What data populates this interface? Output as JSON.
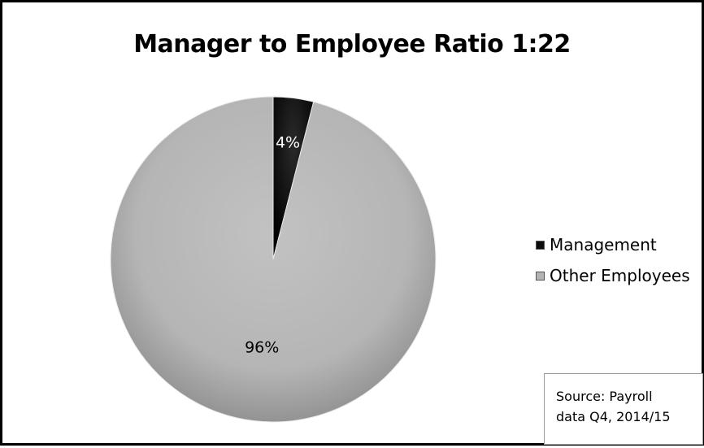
{
  "chart_data": {
    "type": "pie",
    "title": "Manager to Employee Ratio 1:22",
    "categories": [
      "Management",
      "Other Employees"
    ],
    "values": [
      4,
      96
    ],
    "data_labels": [
      "4%",
      "96%"
    ],
    "colors": [
      "#0c0c0c",
      "#b3b3b3"
    ],
    "legend_position": "right",
    "start_angle_deg": 0
  },
  "annotation": {
    "line1": "Source: Payroll",
    "line2": "data Q4, 2014/15"
  }
}
